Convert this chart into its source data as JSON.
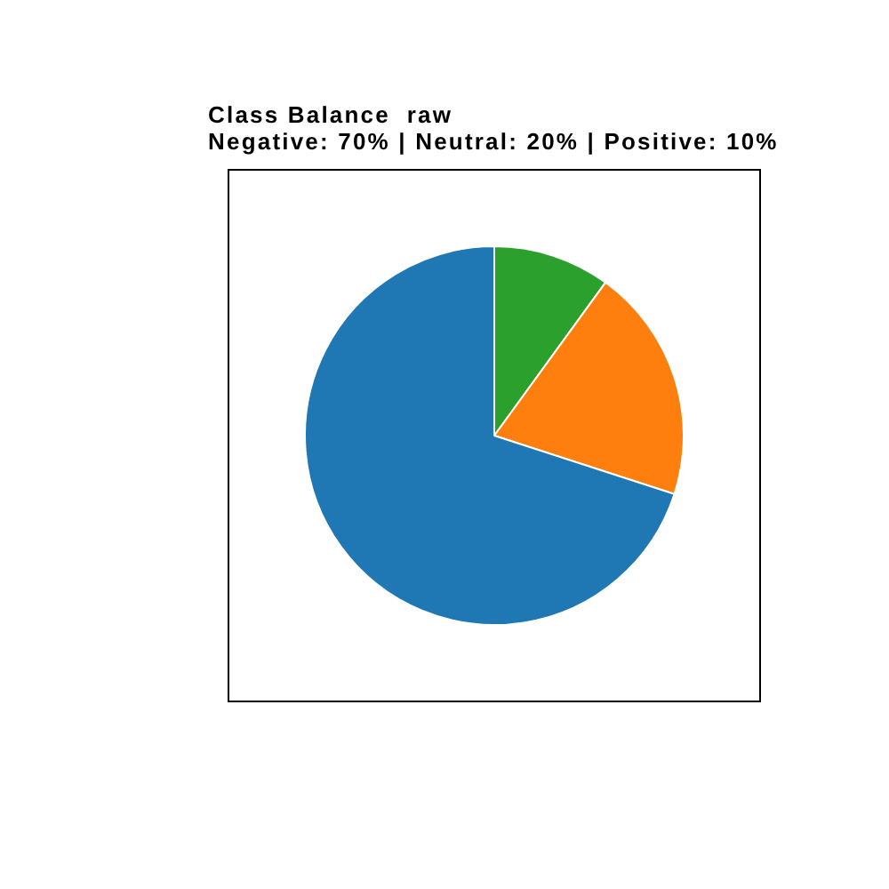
{
  "chart_data": {
    "type": "pie",
    "title": "Class Balance  raw",
    "subtitle": "Negative: 70% | Neutral: 20% | Positive: 10%",
    "categories": [
      null,
      null,
      null
    ],
    "values": [
      10,
      20,
      70
    ],
    "colors": [
      "#2ca02c",
      "#ff7f0e",
      "#1f77b4"
    ]
  }
}
